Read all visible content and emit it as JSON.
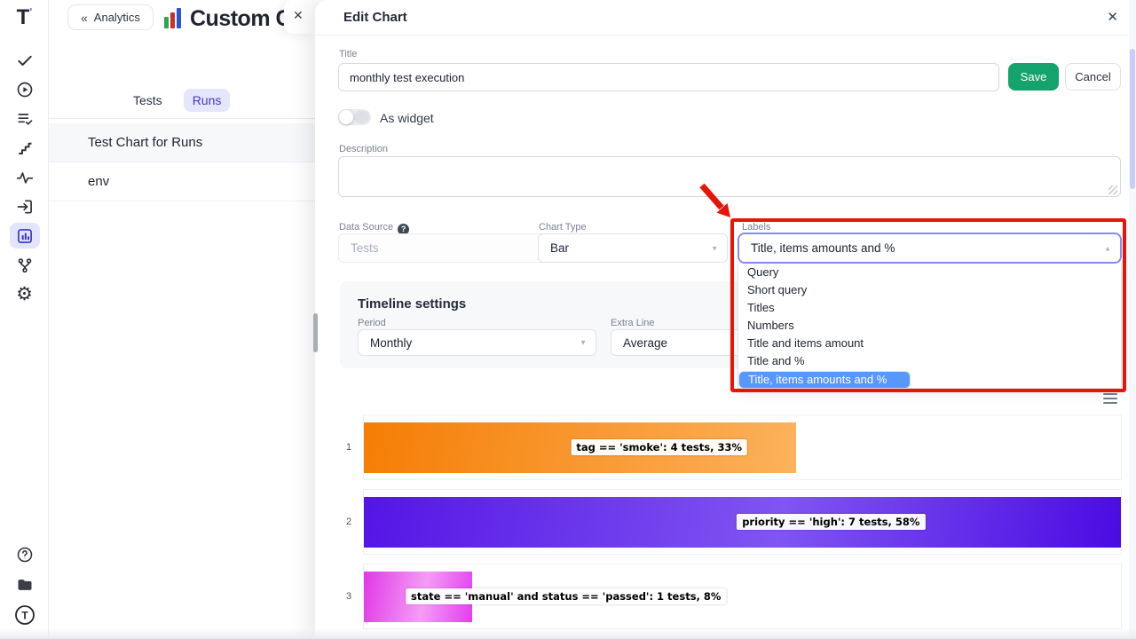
{
  "glyphs": {
    "back_chevron": "«",
    "close": "✕",
    "caret_down": "▼",
    "caret_up": "▲",
    "help": "?",
    "gear": "⚙"
  },
  "sidebar": {
    "logo_text": "T",
    "logo_accent": "'",
    "nav_icons": [
      "tests-check",
      "runs-play",
      "test-plans-list",
      "steps",
      "activity-pulse",
      "import-box",
      "analytics-chart",
      "branches",
      "settings-gear"
    ],
    "active_icon": "analytics-chart",
    "footer_icons": [
      "help-circle",
      "projects-folder",
      "testomat-logo-circle"
    ],
    "footer_logo_text": "T"
  },
  "list_panel": {
    "back_label": "Analytics",
    "title": "Custom Ch",
    "tabs": [
      {
        "label": "Tests",
        "active": false
      },
      {
        "label": "Runs",
        "active": true
      }
    ],
    "items": [
      {
        "label": "Test Chart for Runs"
      },
      {
        "label": "env"
      }
    ]
  },
  "edit_panel": {
    "header": {
      "title": "Edit Chart"
    },
    "form": {
      "title_label": "Title",
      "title_value": "monthly test execution",
      "save_label": "Save",
      "cancel_label": "Cancel",
      "as_widget_label": "As widget",
      "as_widget_on": false,
      "description_label": "Description",
      "description_value": "",
      "data_source_label": "Data Source",
      "data_source_value": "Tests",
      "data_source_disabled": true,
      "chart_type_label": "Chart Type",
      "chart_type_value": "Bar",
      "labels_label": "Labels",
      "labels_value": "Title, items amounts and %",
      "labels_options": [
        "Query",
        "Short query",
        "Titles",
        "Numbers",
        "Title and items amount",
        "Title and %",
        "Title, items amounts and %"
      ],
      "labels_selected_option": "Title, items amounts and %"
    },
    "timeline_settings": {
      "heading": "Timeline settings",
      "period_label": "Period",
      "period_value": "Monthly",
      "extra_line_label": "Extra Line",
      "extra_line_value": "Average"
    }
  },
  "chart_data": {
    "type": "bar",
    "orientation": "horizontal",
    "categories": [
      "1",
      "2",
      "3"
    ],
    "values": [
      4,
      7,
      1
    ],
    "max_value": 7,
    "percentages": [
      33,
      58,
      8
    ],
    "bar_labels": [
      "tag == 'smoke': 4 tests, 33%",
      "priority == 'high': 7 tests, 58%",
      "state == 'manual' and status == 'passed': 1 tests, 8%"
    ],
    "bar_gradients": [
      [
        "#f57d04",
        "#fcb25c"
      ],
      [
        "#5415e5",
        "#8055f2",
        "#4a0be2"
      ],
      [
        "#e138e8",
        "#f49df5",
        "#e33cf0"
      ]
    ]
  },
  "annotations": {
    "highlight_color": "#e81408"
  },
  "colors": {
    "accent_purple": "#4338ca",
    "active_nav_bg": "#e1e4fb",
    "save_green": "#14a36d",
    "selected_option_blue": "#5897fb",
    "focus_border": "#868df2"
  }
}
